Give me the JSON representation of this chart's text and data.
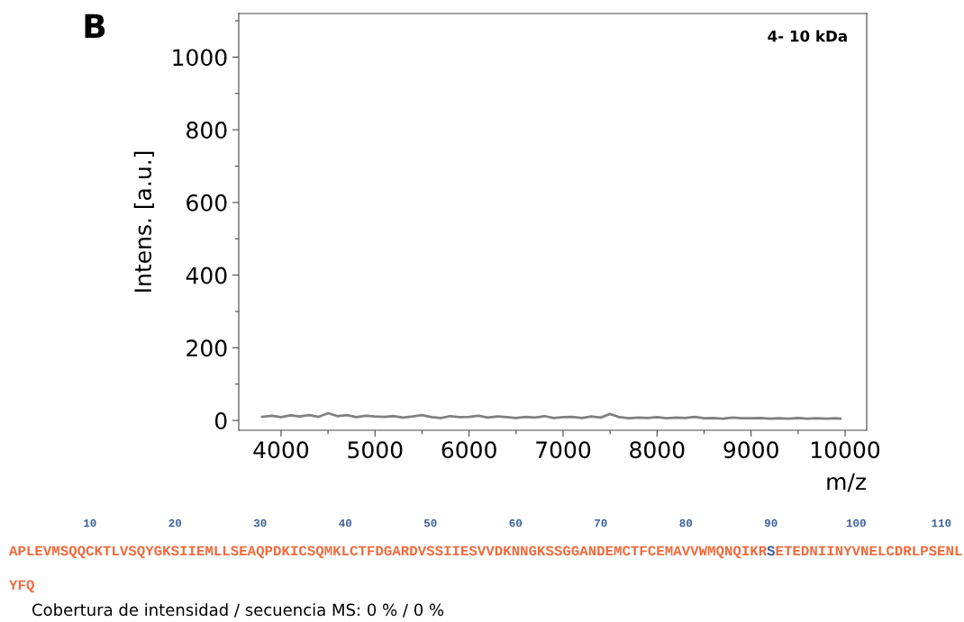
{
  "chart_data": {
    "type": "line",
    "ylabel": "Intens. [a.u.]",
    "xlabel": "m/z",
    "annotations": [
      "B",
      "4- 10 kDa",
      "10",
      "20",
      "30",
      "40",
      "50",
      "60",
      "70",
      "80",
      "90",
      "100",
      "110",
      "APLEVMSQQCKTLVSQYGKSIIEMLLSEAQPDKICSQMKLCTFDGARDVSSIIESVVDKNNGKSSGGANDEMCTFCEMAVVWMQNQIKR",
      "S",
      "ETEDNIINYVNELCDRLPSENL",
      "YFQ",
      "Cobertura de intensidad / secuencia MS: 0 % / 0 %"
    ],
    "x": [
      3800,
      3900,
      4000,
      4100,
      4200,
      4300,
      4400,
      4500,
      4600,
      4700,
      4800,
      4900,
      5000,
      5100,
      5200,
      5300,
      5400,
      5500,
      5600,
      5700,
      5800,
      5900,
      6000,
      6100,
      6200,
      6300,
      6400,
      6500,
      6600,
      6700,
      6800,
      6900,
      7000,
      7100,
      7200,
      7300,
      7400,
      7500,
      7600,
      7700,
      7800,
      7900,
      8000,
      8100,
      8200,
      8300,
      8400,
      8500,
      8600,
      8700,
      8800,
      8900,
      9000,
      9100,
      9200,
      9300,
      9400,
      9500,
      9600,
      9700,
      9800,
      9900,
      9950
    ],
    "series": [
      {
        "color": "#808080",
        "values": [
          10,
          13,
          9,
          14,
          11,
          15,
          10,
          20,
          12,
          15,
          9,
          13,
          11,
          10,
          12,
          8,
          11,
          15,
          9,
          7,
          12,
          9,
          10,
          13,
          8,
          11,
          9,
          7,
          10,
          8,
          12,
          7,
          9,
          10,
          7,
          11,
          8,
          18,
          9,
          6,
          8,
          7,
          9,
          6,
          8,
          7,
          10,
          6,
          7,
          5,
          8,
          6,
          6,
          7,
          5,
          6,
          5,
          7,
          5,
          6,
          5,
          6,
          5
        ]
      }
    ],
    "xlim": [
      3550,
      10230
    ],
    "ylim": [
      -27,
      1120
    ],
    "xticks": [
      4000,
      {
        "value": 4500,
        "label": null
      },
      5000,
      {
        "value": 5500,
        "label": null
      },
      6000,
      {
        "value": 6500,
        "label": null
      },
      7000,
      {
        "value": 7500,
        "label": null
      },
      8000,
      {
        "value": 8500,
        "label": null
      },
      9000,
      {
        "value": 9500,
        "label": null
      },
      10000
    ],
    "yticks": [
      0,
      {
        "value": 100,
        "label": null
      },
      200,
      {
        "value": 300,
        "label": null
      },
      400,
      {
        "value": 500,
        "label": null
      },
      600,
      {
        "value": 700,
        "label": null
      },
      800,
      {
        "value": 900,
        "label": null
      },
      1000,
      {
        "value": 1100,
        "label": null
      }
    ],
    "grid": false,
    "legend": false,
    "marker": "none",
    "line_style": "solid"
  }
}
